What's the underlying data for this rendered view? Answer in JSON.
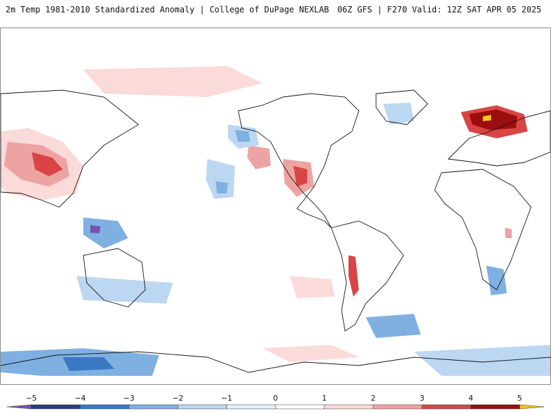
{
  "header": {
    "title_left": "2m Temp 1981-2010 Standardized Anomaly | College of DuPage NEXLAB",
    "title_right": "06Z GFS | F270 Valid: 12Z SAT APR 05 2025"
  },
  "colors": {
    "coastline": "#111111",
    "border": "#333333",
    "ocean_land_background": "#ffffff"
  },
  "legend": {
    "ticks": [
      {
        "value": -5,
        "label": "−5"
      },
      {
        "value": -4,
        "label": "−4"
      },
      {
        "value": -3,
        "label": "−3"
      },
      {
        "value": -2,
        "label": "−2"
      },
      {
        "value": -1,
        "label": "−1"
      },
      {
        "value": 0,
        "label": "0"
      },
      {
        "value": 1,
        "label": "1"
      },
      {
        "value": 2,
        "label": "2"
      },
      {
        "value": 3,
        "label": "3"
      },
      {
        "value": 4,
        "label": "4"
      },
      {
        "value": 5,
        "label": "5"
      }
    ],
    "bins": [
      {
        "from": -5.5,
        "to": -5,
        "color": "#7a4fb0"
      },
      {
        "from": -5,
        "to": -4,
        "color": "#2c3f7a"
      },
      {
        "from": -4,
        "to": -3,
        "color": "#3b78c4"
      },
      {
        "from": -3,
        "to": -2,
        "color": "#7fb0e2"
      },
      {
        "from": -2,
        "to": -1,
        "color": "#bcd7f1"
      },
      {
        "from": -1,
        "to": 0,
        "color": "#e6f0fa"
      },
      {
        "from": 0,
        "to": 1,
        "color": "#ffffff"
      },
      {
        "from": 1,
        "to": 2,
        "color": "#fbdada"
      },
      {
        "from": 2,
        "to": 3,
        "color": "#eea3a3"
      },
      {
        "from": 3,
        "to": 4,
        "color": "#d94545"
      },
      {
        "from": 4,
        "to": 5,
        "color": "#9c0d0d"
      },
      {
        "from": 5,
        "to": 5.5,
        "color": "#f5c518"
      }
    ]
  }
}
